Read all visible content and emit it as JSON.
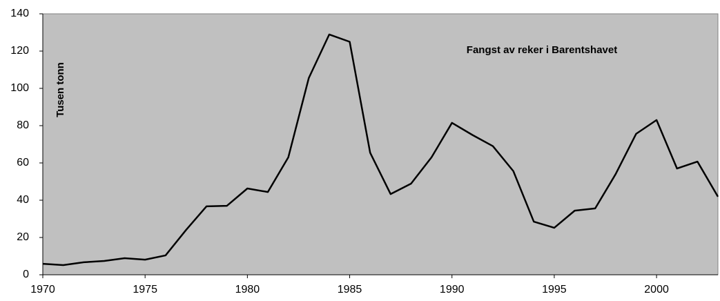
{
  "chart_data": {
    "type": "line",
    "title": "Fangst av reker i Barentshavet",
    "y_label": "Tusen tonn",
    "x": [
      1970,
      1971,
      1972,
      1973,
      1974,
      1975,
      1976,
      1977,
      1978,
      1979,
      1980,
      1981,
      1982,
      1983,
      1984,
      1985,
      1986,
      1987,
      1988,
      1989,
      1990,
      1991,
      1992,
      1993,
      1994,
      1995,
      1996,
      1997,
      1998,
      1999,
      2000,
      2001,
      2002,
      2003
    ],
    "series": [
      {
        "name": "Fangst",
        "color": "#000000",
        "values": [
          5.9,
          5.2,
          6.7,
          7.4,
          8.9,
          8.1,
          10.4,
          24,
          36.7,
          37,
          46.3,
          44.4,
          63,
          105.5,
          128.9,
          125,
          65.5,
          43.3,
          48.9,
          63,
          81.5,
          75,
          69,
          55.6,
          28.5,
          25.2,
          34.4,
          35.6,
          54,
          75.6,
          83,
          57,
          60.7,
          41.9
        ]
      }
    ],
    "xlim": [
      1970,
      2003
    ],
    "xticks": [
      1970,
      1975,
      1980,
      1985,
      1990,
      1995,
      2000
    ],
    "ylim": [
      0,
      140
    ],
    "yticks": [
      0,
      20,
      40,
      60,
      80,
      100,
      120,
      140
    ],
    "plot_background": "#c0c0c0",
    "grid": false
  }
}
